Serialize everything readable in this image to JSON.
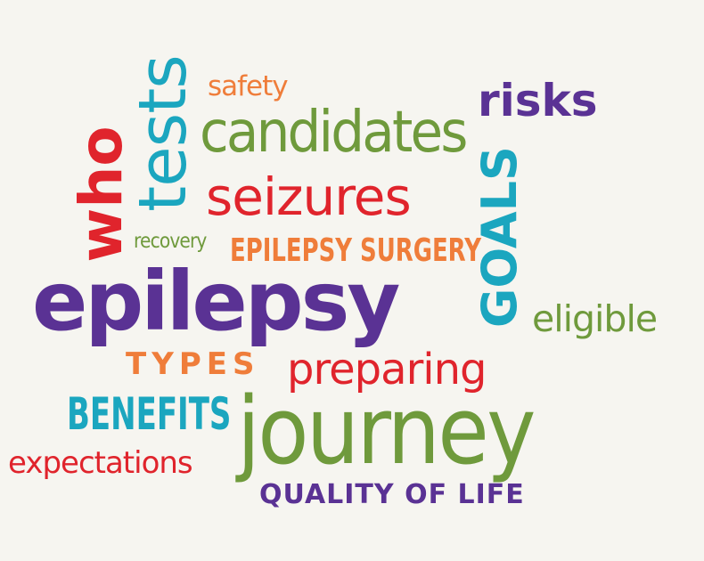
{
  "words": {
    "safety": "safety",
    "candidates": "candidates",
    "risks": "risks",
    "tests": "tests",
    "who": "who",
    "seizures": "seizures",
    "recovery": "recovery",
    "epilepsy_surgery": "EPILEPSY SURGERY",
    "goals": "GOALS",
    "epilepsy": "epilepsy",
    "eligible": "eligible",
    "types": "TYPES",
    "preparing": "preparing",
    "benefits": "BENEFITS",
    "journey": "journey",
    "expectations": "expectations",
    "quality_of_life": "QUALITY OF LIFE"
  },
  "colors": {
    "background": "#f6f5f0",
    "orange": "#ef7d3a",
    "green": "#6f9a3c",
    "purple": "#5a3294",
    "teal": "#1ba6bf",
    "red": "#e0242c"
  }
}
